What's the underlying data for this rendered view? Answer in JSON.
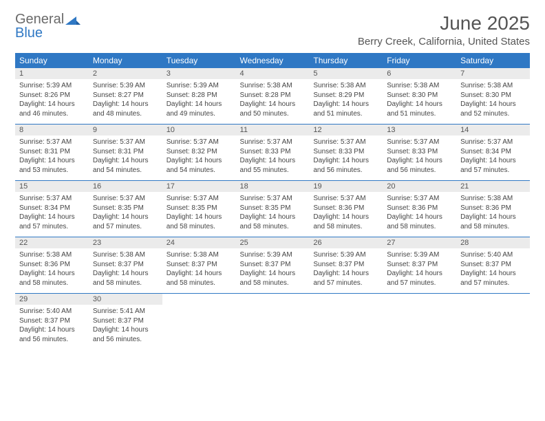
{
  "brand": {
    "line1": "General",
    "line2": "Blue"
  },
  "title": "June 2025",
  "location": "Berry Creek, California, United States",
  "colors": {
    "header_bg": "#2f78c4",
    "header_text": "#ffffff",
    "daynum_bg": "#ebebeb",
    "daynum_text": "#555555",
    "divider": "#2f78c4",
    "title_color": "#555555",
    "logo_gray": "#6a6a6a",
    "logo_blue": "#2f78c4",
    "body_text": "#444444",
    "page_bg": "#ffffff"
  },
  "typography": {
    "month_title_size": 28,
    "location_size": 15,
    "weekday_size": 12,
    "daynum_size": 11,
    "detail_size": 10
  },
  "weekdays": [
    "Sunday",
    "Monday",
    "Tuesday",
    "Wednesday",
    "Thursday",
    "Friday",
    "Saturday"
  ],
  "weeks": [
    [
      {
        "n": "1",
        "sr": "Sunrise: 5:39 AM",
        "ss": "Sunset: 8:26 PM",
        "d1": "Daylight: 14 hours",
        "d2": "and 46 minutes."
      },
      {
        "n": "2",
        "sr": "Sunrise: 5:39 AM",
        "ss": "Sunset: 8:27 PM",
        "d1": "Daylight: 14 hours",
        "d2": "and 48 minutes."
      },
      {
        "n": "3",
        "sr": "Sunrise: 5:39 AM",
        "ss": "Sunset: 8:28 PM",
        "d1": "Daylight: 14 hours",
        "d2": "and 49 minutes."
      },
      {
        "n": "4",
        "sr": "Sunrise: 5:38 AM",
        "ss": "Sunset: 8:28 PM",
        "d1": "Daylight: 14 hours",
        "d2": "and 50 minutes."
      },
      {
        "n": "5",
        "sr": "Sunrise: 5:38 AM",
        "ss": "Sunset: 8:29 PM",
        "d1": "Daylight: 14 hours",
        "d2": "and 51 minutes."
      },
      {
        "n": "6",
        "sr": "Sunrise: 5:38 AM",
        "ss": "Sunset: 8:30 PM",
        "d1": "Daylight: 14 hours",
        "d2": "and 51 minutes."
      },
      {
        "n": "7",
        "sr": "Sunrise: 5:38 AM",
        "ss": "Sunset: 8:30 PM",
        "d1": "Daylight: 14 hours",
        "d2": "and 52 minutes."
      }
    ],
    [
      {
        "n": "8",
        "sr": "Sunrise: 5:37 AM",
        "ss": "Sunset: 8:31 PM",
        "d1": "Daylight: 14 hours",
        "d2": "and 53 minutes."
      },
      {
        "n": "9",
        "sr": "Sunrise: 5:37 AM",
        "ss": "Sunset: 8:31 PM",
        "d1": "Daylight: 14 hours",
        "d2": "and 54 minutes."
      },
      {
        "n": "10",
        "sr": "Sunrise: 5:37 AM",
        "ss": "Sunset: 8:32 PM",
        "d1": "Daylight: 14 hours",
        "d2": "and 54 minutes."
      },
      {
        "n": "11",
        "sr": "Sunrise: 5:37 AM",
        "ss": "Sunset: 8:33 PM",
        "d1": "Daylight: 14 hours",
        "d2": "and 55 minutes."
      },
      {
        "n": "12",
        "sr": "Sunrise: 5:37 AM",
        "ss": "Sunset: 8:33 PM",
        "d1": "Daylight: 14 hours",
        "d2": "and 56 minutes."
      },
      {
        "n": "13",
        "sr": "Sunrise: 5:37 AM",
        "ss": "Sunset: 8:33 PM",
        "d1": "Daylight: 14 hours",
        "d2": "and 56 minutes."
      },
      {
        "n": "14",
        "sr": "Sunrise: 5:37 AM",
        "ss": "Sunset: 8:34 PM",
        "d1": "Daylight: 14 hours",
        "d2": "and 57 minutes."
      }
    ],
    [
      {
        "n": "15",
        "sr": "Sunrise: 5:37 AM",
        "ss": "Sunset: 8:34 PM",
        "d1": "Daylight: 14 hours",
        "d2": "and 57 minutes."
      },
      {
        "n": "16",
        "sr": "Sunrise: 5:37 AM",
        "ss": "Sunset: 8:35 PM",
        "d1": "Daylight: 14 hours",
        "d2": "and 57 minutes."
      },
      {
        "n": "17",
        "sr": "Sunrise: 5:37 AM",
        "ss": "Sunset: 8:35 PM",
        "d1": "Daylight: 14 hours",
        "d2": "and 58 minutes."
      },
      {
        "n": "18",
        "sr": "Sunrise: 5:37 AM",
        "ss": "Sunset: 8:35 PM",
        "d1": "Daylight: 14 hours",
        "d2": "and 58 minutes."
      },
      {
        "n": "19",
        "sr": "Sunrise: 5:37 AM",
        "ss": "Sunset: 8:36 PM",
        "d1": "Daylight: 14 hours",
        "d2": "and 58 minutes."
      },
      {
        "n": "20",
        "sr": "Sunrise: 5:37 AM",
        "ss": "Sunset: 8:36 PM",
        "d1": "Daylight: 14 hours",
        "d2": "and 58 minutes."
      },
      {
        "n": "21",
        "sr": "Sunrise: 5:38 AM",
        "ss": "Sunset: 8:36 PM",
        "d1": "Daylight: 14 hours",
        "d2": "and 58 minutes."
      }
    ],
    [
      {
        "n": "22",
        "sr": "Sunrise: 5:38 AM",
        "ss": "Sunset: 8:36 PM",
        "d1": "Daylight: 14 hours",
        "d2": "and 58 minutes."
      },
      {
        "n": "23",
        "sr": "Sunrise: 5:38 AM",
        "ss": "Sunset: 8:37 PM",
        "d1": "Daylight: 14 hours",
        "d2": "and 58 minutes."
      },
      {
        "n": "24",
        "sr": "Sunrise: 5:38 AM",
        "ss": "Sunset: 8:37 PM",
        "d1": "Daylight: 14 hours",
        "d2": "and 58 minutes."
      },
      {
        "n": "25",
        "sr": "Sunrise: 5:39 AM",
        "ss": "Sunset: 8:37 PM",
        "d1": "Daylight: 14 hours",
        "d2": "and 58 minutes."
      },
      {
        "n": "26",
        "sr": "Sunrise: 5:39 AM",
        "ss": "Sunset: 8:37 PM",
        "d1": "Daylight: 14 hours",
        "d2": "and 57 minutes."
      },
      {
        "n": "27",
        "sr": "Sunrise: 5:39 AM",
        "ss": "Sunset: 8:37 PM",
        "d1": "Daylight: 14 hours",
        "d2": "and 57 minutes."
      },
      {
        "n": "28",
        "sr": "Sunrise: 5:40 AM",
        "ss": "Sunset: 8:37 PM",
        "d1": "Daylight: 14 hours",
        "d2": "and 57 minutes."
      }
    ],
    [
      {
        "n": "29",
        "sr": "Sunrise: 5:40 AM",
        "ss": "Sunset: 8:37 PM",
        "d1": "Daylight: 14 hours",
        "d2": "and 56 minutes."
      },
      {
        "n": "30",
        "sr": "Sunrise: 5:41 AM",
        "ss": "Sunset: 8:37 PM",
        "d1": "Daylight: 14 hours",
        "d2": "and 56 minutes."
      },
      null,
      null,
      null,
      null,
      null
    ]
  ]
}
